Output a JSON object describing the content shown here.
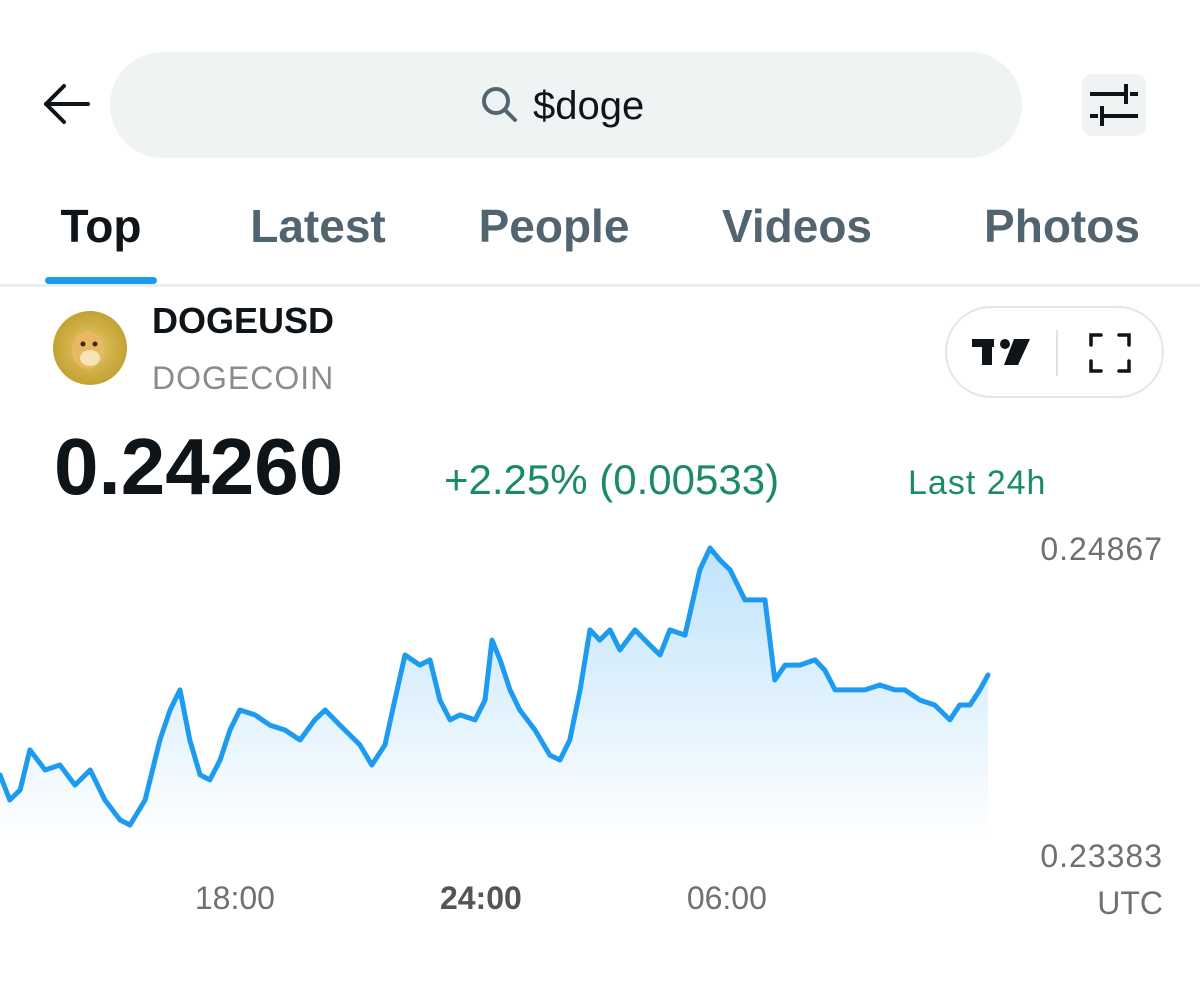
{
  "search": {
    "query": "$doge"
  },
  "tabs": {
    "items": [
      "Top",
      "Latest",
      "People",
      "Videos",
      "Photos"
    ],
    "selected": 0
  },
  "ticker": {
    "symbol": "DOGEUSD",
    "name": "DOGECOIN",
    "price": "0.24260",
    "change": "+2.25% (0.00533)",
    "period": "Last 24h"
  },
  "chart_data": {
    "type": "line",
    "color": "#1d9bf0",
    "x": [
      12.27,
      12.51,
      12.76,
      13.0,
      13.37,
      13.73,
      14.1,
      14.47,
      14.83,
      15.2,
      15.44,
      15.81,
      16.17,
      16.42,
      16.66,
      16.9,
      17.15,
      17.39,
      17.64,
      17.88,
      18.12,
      18.49,
      18.85,
      19.22,
      19.59,
      19.95,
      20.2,
      20.56,
      21.05,
      21.34,
      21.66,
      21.9,
      22.15,
      22.51,
      22.76,
      23.0,
      23.25,
      23.49,
      23.86,
      24.1,
      24.27,
      24.47,
      24.71,
      24.95,
      25.32,
      25.68,
      25.93,
      26.17,
      26.42,
      26.66,
      26.9,
      27.15,
      27.39,
      27.76,
      28.12,
      28.37,
      28.61,
      28.98,
      29.34,
      29.59,
      29.83,
      30.08,
      30.44,
      30.68,
      30.93,
      31.17,
      31.42,
      31.78,
      32.15,
      32.39,
      32.64,
      33.0,
      33.37,
      33.73,
      34.1,
      34.34,
      34.71,
      35.07,
      35.44,
      35.68,
      35.93,
      36.17,
      36.37
    ],
    "values": [
      0.2377,
      0.23649,
      0.23697,
      0.23891,
      0.23794,
      0.23818,
      0.23721,
      0.23794,
      0.23649,
      0.23552,
      0.23528,
      0.23649,
      0.23939,
      0.24084,
      0.24181,
      0.23939,
      0.2377,
      0.23746,
      0.23842,
      0.23987,
      0.24084,
      0.2406,
      0.24011,
      0.23987,
      0.23939,
      0.24036,
      0.24084,
      0.24011,
      0.23915,
      0.23818,
      0.23915,
      0.24132,
      0.2435,
      0.24301,
      0.24326,
      0.24132,
      0.24036,
      0.2406,
      0.24036,
      0.24132,
      0.24422,
      0.24326,
      0.24181,
      0.24084,
      0.23987,
      0.23866,
      0.23842,
      0.23939,
      0.24181,
      0.24471,
      0.24422,
      0.24471,
      0.24374,
      0.24471,
      0.24398,
      0.2435,
      0.24471,
      0.24446,
      0.24761,
      0.24867,
      0.24809,
      0.24761,
      0.24616,
      0.24616,
      0.24616,
      0.24229,
      0.24301,
      0.24301,
      0.24326,
      0.24277,
      0.24181,
      0.24181,
      0.24181,
      0.24205,
      0.24181,
      0.24181,
      0.24132,
      0.24108,
      0.24036,
      0.24108,
      0.24108,
      0.24181,
      0.24253
    ],
    "xlim": [
      12.27,
      36.37
    ],
    "xticks": [
      {
        "value": 18,
        "label": "18:00"
      },
      {
        "value": 24,
        "label": "24:00",
        "bold": true
      },
      {
        "value": 30,
        "label": "06:00"
      }
    ],
    "xlabel": "UTC",
    "ylim": [
      0.23383,
      0.24867
    ],
    "yticks": [
      0.23383,
      0.24867
    ]
  }
}
